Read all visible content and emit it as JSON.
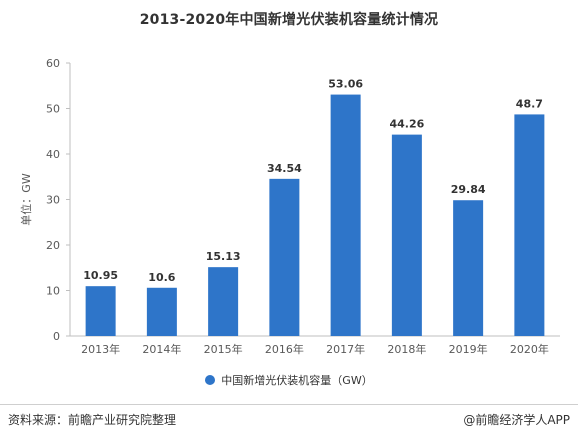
{
  "chart_data": {
    "type": "bar",
    "title": "2013-2020年中国新增光伏装机容量统计情况",
    "categories": [
      "2013年",
      "2014年",
      "2015年",
      "2016年",
      "2017年",
      "2018年",
      "2019年",
      "2020年"
    ],
    "series": [
      {
        "name": "中国新增光伏装机容量（GW）",
        "values": [
          10.95,
          10.6,
          15.13,
          34.54,
          53.06,
          44.26,
          29.84,
          48.7
        ],
        "value_labels": [
          "10.95",
          "10.6",
          "15.13",
          "34.54",
          "53.06",
          "44.26",
          "29.84",
          "48.7"
        ]
      }
    ],
    "ylabel": "单位：GW",
    "ylim": [
      0,
      60
    ],
    "yticks": [
      "0",
      "10",
      "20",
      "30",
      "40",
      "50",
      "60"
    ],
    "grid": false,
    "legend_position": "bottom-center",
    "bar_color": "#2e75c9"
  },
  "footer": {
    "source": "资料来源：前瞻产业研究院整理",
    "credit": "@前瞻经济学人APP"
  }
}
